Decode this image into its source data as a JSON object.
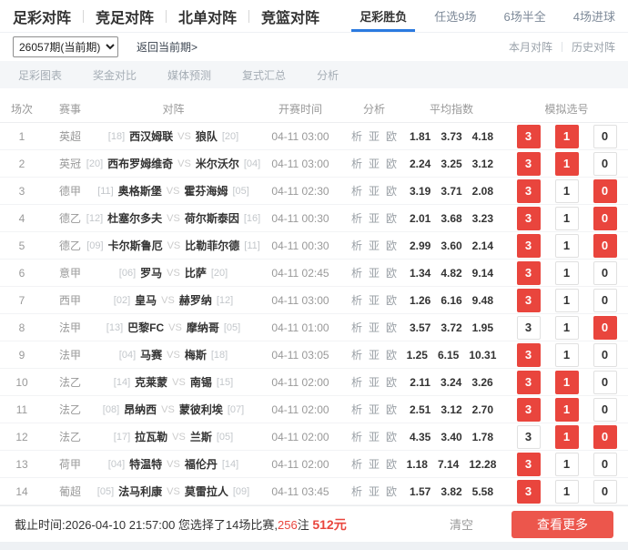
{
  "nav": {
    "sections": [
      "足彩对阵",
      "竞足对阵",
      "北单对阵",
      "竞篮对阵"
    ],
    "tabs": [
      {
        "label": "足彩胜负",
        "active": true
      },
      {
        "label": "任选9场",
        "active": false
      },
      {
        "label": "6场半全",
        "active": false
      },
      {
        "label": "4场进球",
        "active": false
      }
    ]
  },
  "toolbar": {
    "period_select": "26057期(当前期)",
    "back_link": "返回当前期>",
    "month_link": "本月对阵",
    "history_link": "历史对阵"
  },
  "submenu": [
    "足彩图表",
    "奖金对比",
    "媒体预测",
    "复式汇总",
    "分析"
  ],
  "table": {
    "headers": [
      "场次",
      "赛事",
      "对阵",
      "开赛时间",
      "分析",
      "平均指数",
      "模拟选号"
    ],
    "analysis_links": [
      "析",
      "亚",
      "欧"
    ],
    "rows": [
      {
        "no": "1",
        "league": "英超",
        "home_rank": "[18]",
        "home": "西汉姆联",
        "vs": "VS",
        "away": "狼队",
        "away_rank": "[20]",
        "time": "04-11 03:00",
        "odds": [
          "1.81",
          "3.73",
          "4.18"
        ],
        "picks": [
          {
            "label": "3",
            "selected": true
          },
          {
            "label": "1",
            "selected": true
          },
          {
            "label": "0",
            "selected": false
          }
        ]
      },
      {
        "no": "2",
        "league": "英冠",
        "home_rank": "[20]",
        "home": "西布罗姆维奇",
        "vs": "VS",
        "away": "米尔沃尔",
        "away_rank": "[04]",
        "time": "04-11 03:00",
        "odds": [
          "2.24",
          "3.25",
          "3.12"
        ],
        "picks": [
          {
            "label": "3",
            "selected": true
          },
          {
            "label": "1",
            "selected": true
          },
          {
            "label": "0",
            "selected": false
          }
        ]
      },
      {
        "no": "3",
        "league": "德甲",
        "home_rank": "[11]",
        "home": "奥格斯堡",
        "vs": "VS",
        "away": "霍芬海姆",
        "away_rank": "[05]",
        "time": "04-11 02:30",
        "odds": [
          "3.19",
          "3.71",
          "2.08"
        ],
        "picks": [
          {
            "label": "3",
            "selected": true
          },
          {
            "label": "1",
            "selected": false
          },
          {
            "label": "0",
            "selected": true
          }
        ]
      },
      {
        "no": "4",
        "league": "德乙",
        "home_rank": "[12]",
        "home": "杜塞尔多夫",
        "vs": "VS",
        "away": "荷尔斯泰因",
        "away_rank": "[16]",
        "time": "04-11 00:30",
        "odds": [
          "2.01",
          "3.68",
          "3.23"
        ],
        "picks": [
          {
            "label": "3",
            "selected": true
          },
          {
            "label": "1",
            "selected": false
          },
          {
            "label": "0",
            "selected": true
          }
        ]
      },
      {
        "no": "5",
        "league": "德乙",
        "home_rank": "[09]",
        "home": "卡尔斯鲁厄",
        "vs": "VS",
        "away": "比勒菲尔德",
        "away_rank": "[11]",
        "time": "04-11 00:30",
        "odds": [
          "2.99",
          "3.60",
          "2.14"
        ],
        "picks": [
          {
            "label": "3",
            "selected": true
          },
          {
            "label": "1",
            "selected": false
          },
          {
            "label": "0",
            "selected": true
          }
        ]
      },
      {
        "no": "6",
        "league": "意甲",
        "home_rank": "[06]",
        "home": "罗马",
        "vs": "VS",
        "away": "比萨",
        "away_rank": "[20]",
        "time": "04-11 02:45",
        "odds": [
          "1.34",
          "4.82",
          "9.14"
        ],
        "picks": [
          {
            "label": "3",
            "selected": true
          },
          {
            "label": "1",
            "selected": false
          },
          {
            "label": "0",
            "selected": false
          }
        ]
      },
      {
        "no": "7",
        "league": "西甲",
        "home_rank": "[02]",
        "home": "皇马",
        "vs": "VS",
        "away": "赫罗纳",
        "away_rank": "[12]",
        "time": "04-11 03:00",
        "odds": [
          "1.26",
          "6.16",
          "9.48"
        ],
        "picks": [
          {
            "label": "3",
            "selected": true
          },
          {
            "label": "1",
            "selected": false
          },
          {
            "label": "0",
            "selected": false
          }
        ]
      },
      {
        "no": "8",
        "league": "法甲",
        "home_rank": "[13]",
        "home": "巴黎FC",
        "vs": "VS",
        "away": "摩纳哥",
        "away_rank": "[05]",
        "time": "04-11 01:00",
        "odds": [
          "3.57",
          "3.72",
          "1.95"
        ],
        "picks": [
          {
            "label": "3",
            "selected": false
          },
          {
            "label": "1",
            "selected": false
          },
          {
            "label": "0",
            "selected": true
          }
        ]
      },
      {
        "no": "9",
        "league": "法甲",
        "home_rank": "[04]",
        "home": "马赛",
        "vs": "VS",
        "away": "梅斯",
        "away_rank": "[18]",
        "time": "04-11 03:05",
        "odds": [
          "1.25",
          "6.15",
          "10.31"
        ],
        "picks": [
          {
            "label": "3",
            "selected": true
          },
          {
            "label": "1",
            "selected": false
          },
          {
            "label": "0",
            "selected": false
          }
        ]
      },
      {
        "no": "10",
        "league": "法乙",
        "home_rank": "[14]",
        "home": "克莱蒙",
        "vs": "VS",
        "away": "南锡",
        "away_rank": "[15]",
        "time": "04-11 02:00",
        "odds": [
          "2.11",
          "3.24",
          "3.26"
        ],
        "picks": [
          {
            "label": "3",
            "selected": true
          },
          {
            "label": "1",
            "selected": true
          },
          {
            "label": "0",
            "selected": false
          }
        ]
      },
      {
        "no": "11",
        "league": "法乙",
        "home_rank": "[08]",
        "home": "昂纳西",
        "vs": "VS",
        "away": "蒙彼利埃",
        "away_rank": "[07]",
        "time": "04-11 02:00",
        "odds": [
          "2.51",
          "3.12",
          "2.70"
        ],
        "picks": [
          {
            "label": "3",
            "selected": true
          },
          {
            "label": "1",
            "selected": true
          },
          {
            "label": "0",
            "selected": false
          }
        ]
      },
      {
        "no": "12",
        "league": "法乙",
        "home_rank": "[17]",
        "home": "拉瓦勒",
        "vs": "VS",
        "away": "兰斯",
        "away_rank": "[05]",
        "time": "04-11 02:00",
        "odds": [
          "4.35",
          "3.40",
          "1.78"
        ],
        "picks": [
          {
            "label": "3",
            "selected": false
          },
          {
            "label": "1",
            "selected": true
          },
          {
            "label": "0",
            "selected": true
          }
        ]
      },
      {
        "no": "13",
        "league": "荷甲",
        "home_rank": "[04]",
        "home": "特温特",
        "vs": "VS",
        "away": "福伦丹",
        "away_rank": "[14]",
        "time": "04-11 02:00",
        "odds": [
          "1.18",
          "7.14",
          "12.28"
        ],
        "picks": [
          {
            "label": "3",
            "selected": true
          },
          {
            "label": "1",
            "selected": false
          },
          {
            "label": "0",
            "selected": false
          }
        ]
      },
      {
        "no": "14",
        "league": "葡超",
        "home_rank": "[05]",
        "home": "法马利康",
        "vs": "VS",
        "away": "莫雷拉人",
        "away_rank": "[09]",
        "time": "04-11 03:45",
        "odds": [
          "1.57",
          "3.82",
          "5.58"
        ],
        "picks": [
          {
            "label": "3",
            "selected": true
          },
          {
            "label": "1",
            "selected": false
          },
          {
            "label": "0",
            "selected": false
          }
        ]
      }
    ]
  },
  "footer": {
    "deadline_prefix": "截止时间:2026-04-10 21:57:00 您选择了14场比赛,",
    "bets": "256",
    "bets_suffix": "注 ",
    "amount": "512元",
    "clear_label": "清空",
    "more_label": "查看更多"
  },
  "colors": {
    "accent_red": "#e9453d",
    "button_red": "#ec564c",
    "accent_blue": "#2b7ae0"
  }
}
